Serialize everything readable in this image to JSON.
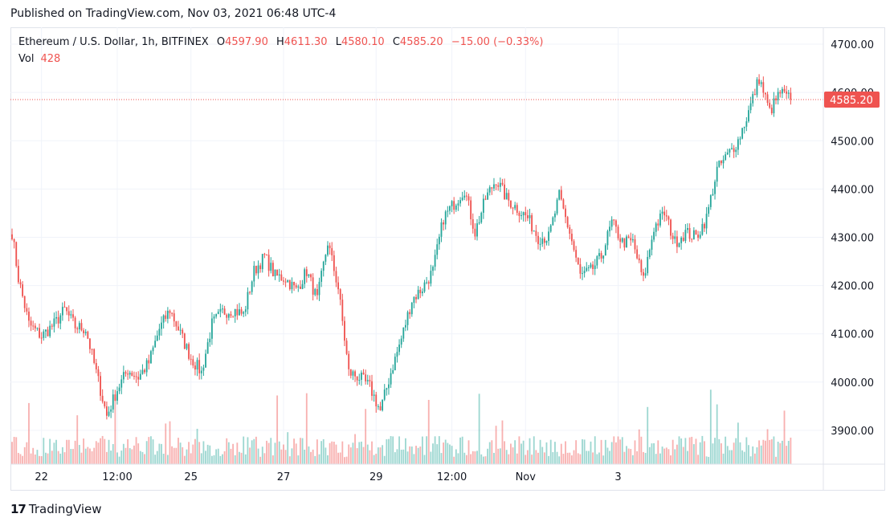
{
  "header": {
    "published": "Published on TradingView.com, Nov 03, 2021 06:48 UTC-4"
  },
  "legend": {
    "symbol": "Ethereum / U.S. Dollar, 1h, BITFINEX",
    "open_label": "O",
    "open": "4597.90",
    "high_label": "H",
    "high": "4611.30",
    "low_label": "L",
    "low": "4580.10",
    "close_label": "C",
    "close": "4585.20",
    "change": "−15.00 (−0.33%)",
    "vol_label": "Vol",
    "vol": "428"
  },
  "brand": {
    "logo": "17",
    "name": "TradingView"
  },
  "colors": {
    "up": "#26a69a",
    "down": "#ef5350",
    "grid": "#f0f3fa",
    "text": "#131722"
  },
  "chart_data": {
    "type": "candlestick",
    "title": "Ethereum / U.S. Dollar, 1h, BITFINEX",
    "y_ticks": [
      "3900.00",
      "4000.00",
      "4100.00",
      "4200.00",
      "4300.00",
      "4400.00",
      "4500.00",
      "4600.00",
      "4700.00"
    ],
    "y_tick_values": [
      3900,
      4000,
      4100,
      4200,
      4300,
      4400,
      4500,
      4600,
      4700
    ],
    "ylim": [
      3830,
      4735
    ],
    "x_ticks": [
      {
        "label": "22",
        "index": 14
      },
      {
        "label": "12:00",
        "index": 50
      },
      {
        "label": "25",
        "index": 85
      },
      {
        "label": "27",
        "index": 129
      },
      {
        "label": "29",
        "index": 173
      },
      {
        "label": "12:00",
        "index": 209
      },
      {
        "label": "Nov",
        "index": 244
      },
      {
        "label": "3",
        "index": 288
      }
    ],
    "last_price": 4585.2,
    "last_price_label": "4585.20",
    "grid": true,
    "anchors_close": [
      [
        0,
        4310
      ],
      [
        3,
        4215
      ],
      [
        8,
        4120
      ],
      [
        14,
        4095
      ],
      [
        20,
        4120
      ],
      [
        25,
        4150
      ],
      [
        30,
        4115
      ],
      [
        35,
        4110
      ],
      [
        40,
        4020
      ],
      [
        45,
        3930
      ],
      [
        50,
        3985
      ],
      [
        55,
        4025
      ],
      [
        60,
        4010
      ],
      [
        65,
        4040
      ],
      [
        70,
        4110
      ],
      [
        75,
        4150
      ],
      [
        80,
        4100
      ],
      [
        85,
        4050
      ],
      [
        90,
        4020
      ],
      [
        95,
        4120
      ],
      [
        100,
        4145
      ],
      [
        105,
        4150
      ],
      [
        110,
        4140
      ],
      [
        115,
        4230
      ],
      [
        120,
        4260
      ],
      [
        125,
        4220
      ],
      [
        130,
        4215
      ],
      [
        135,
        4190
      ],
      [
        140,
        4230
      ],
      [
        145,
        4170
      ],
      [
        150,
        4290
      ],
      [
        155,
        4195
      ],
      [
        160,
        4020
      ],
      [
        165,
        4010
      ],
      [
        170,
        3990
      ],
      [
        175,
        3940
      ],
      [
        180,
        4020
      ],
      [
        185,
        4090
      ],
      [
        190,
        4170
      ],
      [
        195,
        4195
      ],
      [
        200,
        4230
      ],
      [
        205,
        4340
      ],
      [
        210,
        4370
      ],
      [
        215,
        4400
      ],
      [
        220,
        4310
      ],
      [
        225,
        4380
      ],
      [
        230,
        4420
      ],
      [
        235,
        4380
      ],
      [
        240,
        4360
      ],
      [
        245,
        4340
      ],
      [
        250,
        4300
      ],
      [
        255,
        4300
      ],
      [
        260,
        4385
      ],
      [
        265,
        4310
      ],
      [
        270,
        4220
      ],
      [
        275,
        4230
      ],
      [
        280,
        4260
      ],
      [
        285,
        4330
      ],
      [
        290,
        4290
      ],
      [
        295,
        4290
      ],
      [
        300,
        4210
      ],
      [
        305,
        4320
      ],
      [
        310,
        4350
      ],
      [
        315,
        4290
      ],
      [
        320,
        4310
      ],
      [
        325,
        4300
      ],
      [
        330,
        4340
      ],
      [
        335,
        4440
      ],
      [
        340,
        4470
      ],
      [
        345,
        4500
      ],
      [
        350,
        4560
      ],
      [
        355,
        4630
      ],
      [
        360,
        4560
      ],
      [
        365,
        4600
      ],
      [
        370,
        4585
      ]
    ],
    "volume_ylim": [
      0,
      500
    ],
    "volume_last": 428
  }
}
